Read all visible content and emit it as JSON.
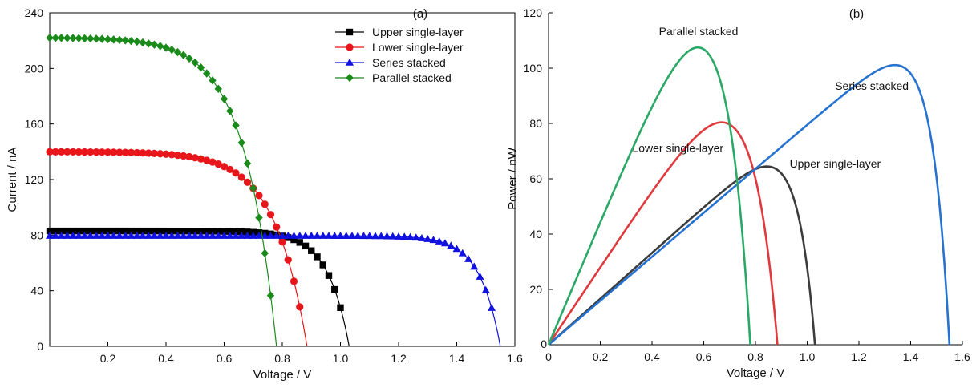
{
  "chart_data": [
    {
      "panel_label": "(a)",
      "type": "line",
      "xlabel": "Voltage / V",
      "ylabel": "Current / nA",
      "xlim": [
        0,
        1.6
      ],
      "ylim": [
        0,
        240
      ],
      "xticks": [
        0.2,
        0.4,
        0.6,
        0.8,
        1.0,
        1.2,
        1.4,
        1.6
      ],
      "xtick_labels": [
        "0.2",
        "0.4",
        "0.6",
        "0.8",
        "1.0",
        "1.2",
        "1.4",
        "1.6"
      ],
      "yticks": [
        0,
        40,
        80,
        120,
        160,
        200,
        240
      ],
      "ytick_labels": [
        "0",
        "40",
        "80",
        "120",
        "160",
        "200",
        "240"
      ],
      "grid": false,
      "legend": "top-right",
      "series": [
        {
          "name": "Upper single-layer",
          "color": "#000000",
          "marker": "square",
          "Isc": 83,
          "Voc": 1.03,
          "shape": 14,
          "points": [
            [
              0.9,
              73
            ],
            [
              0.93,
              68
            ],
            [
              0.96,
              57
            ],
            [
              0.98,
              47
            ],
            [
              1.0,
              32
            ],
            [
              1.02,
              10
            ]
          ]
        },
        {
          "name": "Lower single-layer",
          "color": "#e8161b",
          "marker": "circle",
          "Isc": 140,
          "Voc": 0.885,
          "shape": 8,
          "points": [
            [
              0.74,
              60
            ],
            [
              0.78,
              47
            ],
            [
              0.82,
              33
            ],
            [
              0.85,
              20
            ],
            [
              0.88,
              7
            ]
          ]
        },
        {
          "name": "Series stacked",
          "color": "#1010e0",
          "marker": "triangle",
          "Isc": 79.5,
          "Voc": 1.55,
          "shape": 22,
          "points": [
            [
              1.4,
              58
            ],
            [
              1.44,
              50
            ],
            [
              1.48,
              38
            ],
            [
              1.51,
              20
            ],
            [
              1.54,
              7
            ]
          ]
        },
        {
          "name": "Parallel stacked",
          "color": "#1a8a1a",
          "marker": "diamond",
          "Isc": 222,
          "Voc": 0.78,
          "shape": 7,
          "points": [
            [
              0.62,
              146
            ],
            [
              0.66,
              131
            ],
            [
              0.68,
              116
            ],
            [
              0.7,
              92
            ],
            [
              0.73,
              66
            ],
            [
              0.76,
              34
            ]
          ]
        }
      ]
    },
    {
      "panel_label": "(b)",
      "type": "line",
      "xlabel": "Voltage / V",
      "ylabel": "Power / nW",
      "xlim": [
        0,
        1.6
      ],
      "ylim": [
        0,
        120
      ],
      "xticks": [
        0,
        0.2,
        0.4,
        0.6,
        0.8,
        1.0,
        1.2,
        1.4,
        1.6
      ],
      "xtick_labels": [
        "0",
        "0.2",
        "0.4",
        "0.6",
        "0.8",
        "1.0",
        "1.2",
        "1.4",
        "1.6"
      ],
      "yticks": [
        20,
        40,
        60,
        80,
        100,
        120
      ],
      "ytick_labels": [
        "20",
        "40",
        "60",
        "80",
        "100",
        "120"
      ],
      "grid": false,
      "series": [
        {
          "name": "Upper single-layer",
          "color": "#3c3c3c",
          "label": "Upper single-layer",
          "Isc": 83,
          "Voc": 1.03,
          "shape": 14
        },
        {
          "name": "Lower single-layer",
          "color": "#e0393e",
          "label": "Lower single-layer",
          "Isc": 140,
          "Voc": 0.885,
          "shape": 8
        },
        {
          "name": "Series stacked",
          "color": "#2672d0",
          "label": "Series stacked",
          "Isc": 79.5,
          "Voc": 1.55,
          "shape": 22
        },
        {
          "name": "Parallel stacked",
          "color": "#2aa866",
          "label": "Parallel stacked",
          "Isc": 222,
          "Voc": 0.78,
          "shape": 7
        }
      ]
    }
  ]
}
